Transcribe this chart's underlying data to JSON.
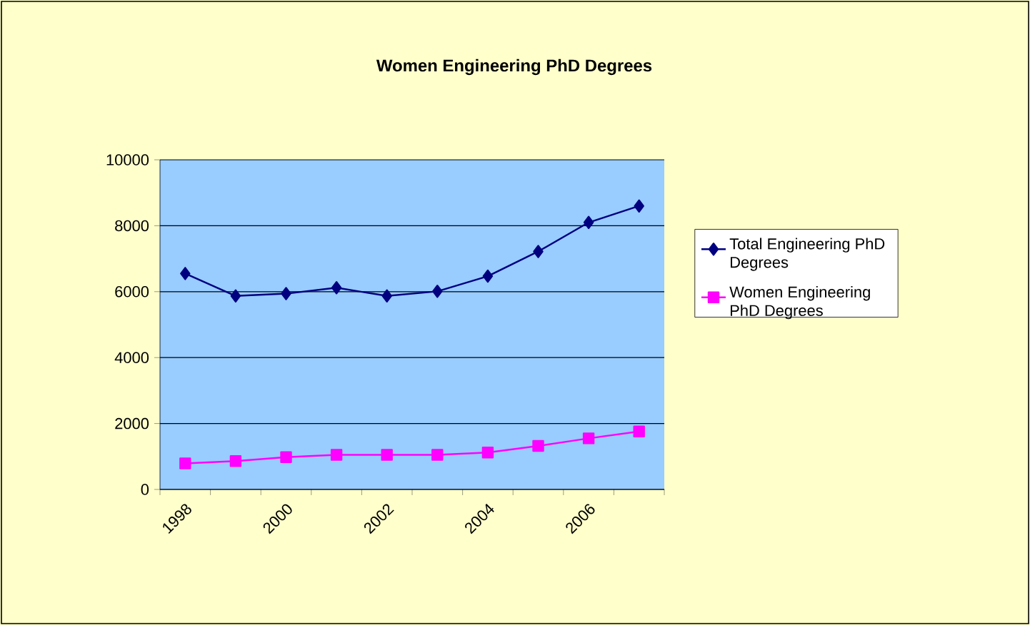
{
  "chart_data": {
    "type": "line",
    "title": "Women Engineering PhD Degrees",
    "categories": [
      "1998",
      null,
      "2000",
      null,
      "2002",
      null,
      "2004",
      null,
      "2006",
      null
    ],
    "series": [
      {
        "name": "Total Engineering PhD Degrees",
        "color": "#000080",
        "marker": "diamond",
        "values": [
          6550,
          5870,
          5940,
          6120,
          5870,
          6010,
          6470,
          7220,
          8100,
          8600
        ]
      },
      {
        "name": "Women Engineering PhD Degrees",
        "color": "#ff00ff",
        "marker": "square",
        "values": [
          790,
          860,
          980,
          1050,
          1050,
          1050,
          1120,
          1320,
          1550,
          1760
        ]
      }
    ],
    "ylim": [
      0,
      10000
    ],
    "yticks": [
      0,
      2000,
      4000,
      6000,
      8000,
      10000
    ],
    "grid": "y",
    "legend": "right"
  }
}
